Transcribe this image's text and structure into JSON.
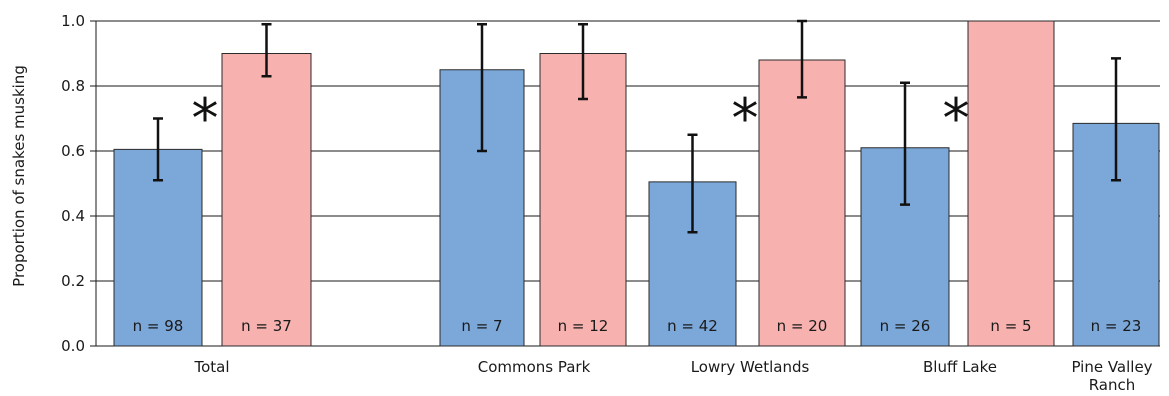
{
  "chart_data": {
    "type": "bar",
    "ylabel": "Proportion of snakes musking",
    "ylim": [
      0,
      1.0
    ],
    "yticks": [
      "0.0",
      "0.2",
      "0.4",
      "0.6",
      "0.8",
      "1.0"
    ],
    "grid": true,
    "colors": {
      "blue": "#7ba7d9",
      "pink": "#f7b2af",
      "edge": "#2b2b2b"
    },
    "categories": [
      {
        "label": "Total",
        "label_lines": [
          "Total"
        ]
      },
      {
        "label": "Commons Park",
        "label_lines": [
          "Commons Park"
        ]
      },
      {
        "label": "Lowry Wetlands",
        "label_lines": [
          "Lowry Wetlands"
        ]
      },
      {
        "label": "Bluff Lake",
        "label_lines": [
          "Bluff Lake"
        ]
      },
      {
        "label": "Pine Valley Ranch",
        "label_lines": [
          "Pine Valley",
          "Ranch"
        ]
      }
    ],
    "bars": [
      {
        "category": "Total",
        "color": "blue",
        "value": 0.605,
        "err_low": 0.51,
        "err_high": 0.7,
        "n_label": "n = 98"
      },
      {
        "category": "Total",
        "color": "pink",
        "value": 0.9,
        "err_low": 0.83,
        "err_high": 0.99,
        "n_label": "n = 37"
      },
      {
        "category": "Commons Park",
        "color": "blue",
        "value": 0.85,
        "err_low": 0.6,
        "err_high": 0.99,
        "n_label": "n = 7"
      },
      {
        "category": "Commons Park",
        "color": "pink",
        "value": 0.9,
        "err_low": 0.76,
        "err_high": 0.99,
        "n_label": "n = 12"
      },
      {
        "category": "Lowry Wetlands",
        "color": "blue",
        "value": 0.505,
        "err_low": 0.35,
        "err_high": 0.65,
        "n_label": "n = 42"
      },
      {
        "category": "Lowry Wetlands",
        "color": "pink",
        "value": 0.88,
        "err_low": 0.765,
        "err_high": 1.0,
        "n_label": "n = 20"
      },
      {
        "category": "Bluff Lake",
        "color": "blue",
        "value": 0.61,
        "err_low": 0.435,
        "err_high": 0.81,
        "n_label": "n = 26"
      },
      {
        "category": "Bluff Lake",
        "color": "pink",
        "value": 1.0,
        "err_low": null,
        "err_high": null,
        "n_label": "n = 5"
      },
      {
        "category": "Pine Valley Ranch",
        "color": "blue",
        "value": 0.685,
        "err_low": 0.51,
        "err_high": 0.885,
        "n_label": "n = 23"
      }
    ],
    "significance_markers": [
      {
        "category": "Total",
        "symbol": "*"
      },
      {
        "category": "Lowry Wetlands",
        "symbol": "*"
      },
      {
        "category": "Bluff Lake",
        "symbol": "*"
      }
    ]
  }
}
